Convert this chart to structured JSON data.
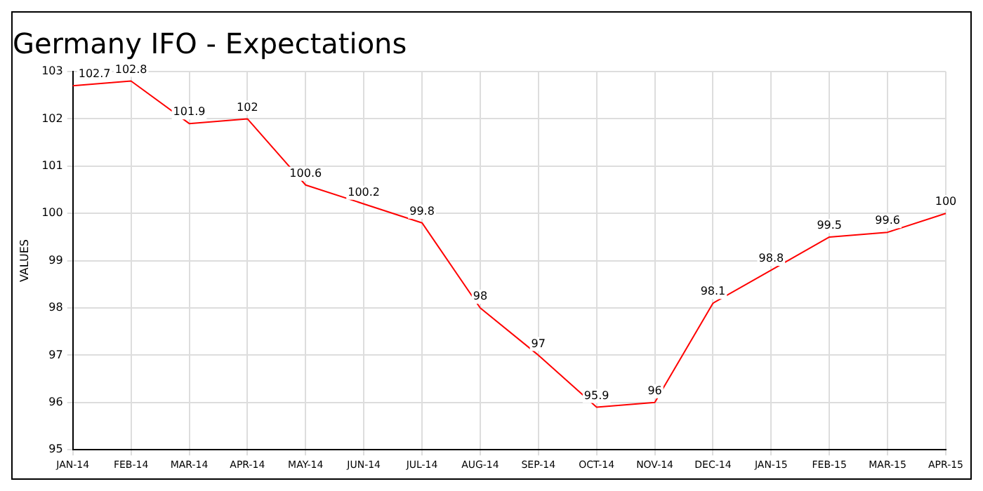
{
  "chart_data": {
    "type": "line",
    "title": "Germany IFO - Expectations",
    "ylabel": "VALUES",
    "categories": [
      "JAN-14",
      "FEB-14",
      "MAR-14",
      "APR-14",
      "MAY-14",
      "JUN-14",
      "JUL-14",
      "AUG-14",
      "SEP-14",
      "OCT-14",
      "NOV-14",
      "DEC-14",
      "JAN-15",
      "FEB-15",
      "MAR-15",
      "APR-15"
    ],
    "series": [
      {
        "color": "#ff0000",
        "values": [
          102.7,
          102.8,
          101.9,
          102,
          100.6,
          100.2,
          99.8,
          98,
          97,
          95.9,
          96,
          98.1,
          98.8,
          99.5,
          99.6,
          100
        ]
      }
    ],
    "ylim": [
      95,
      103
    ],
    "yticks": [
      95,
      96,
      97,
      98,
      99,
      100,
      101,
      102,
      103
    ],
    "grid": true,
    "marker": "none",
    "line_style": "solid",
    "data_labels": true,
    "legend": false
  }
}
